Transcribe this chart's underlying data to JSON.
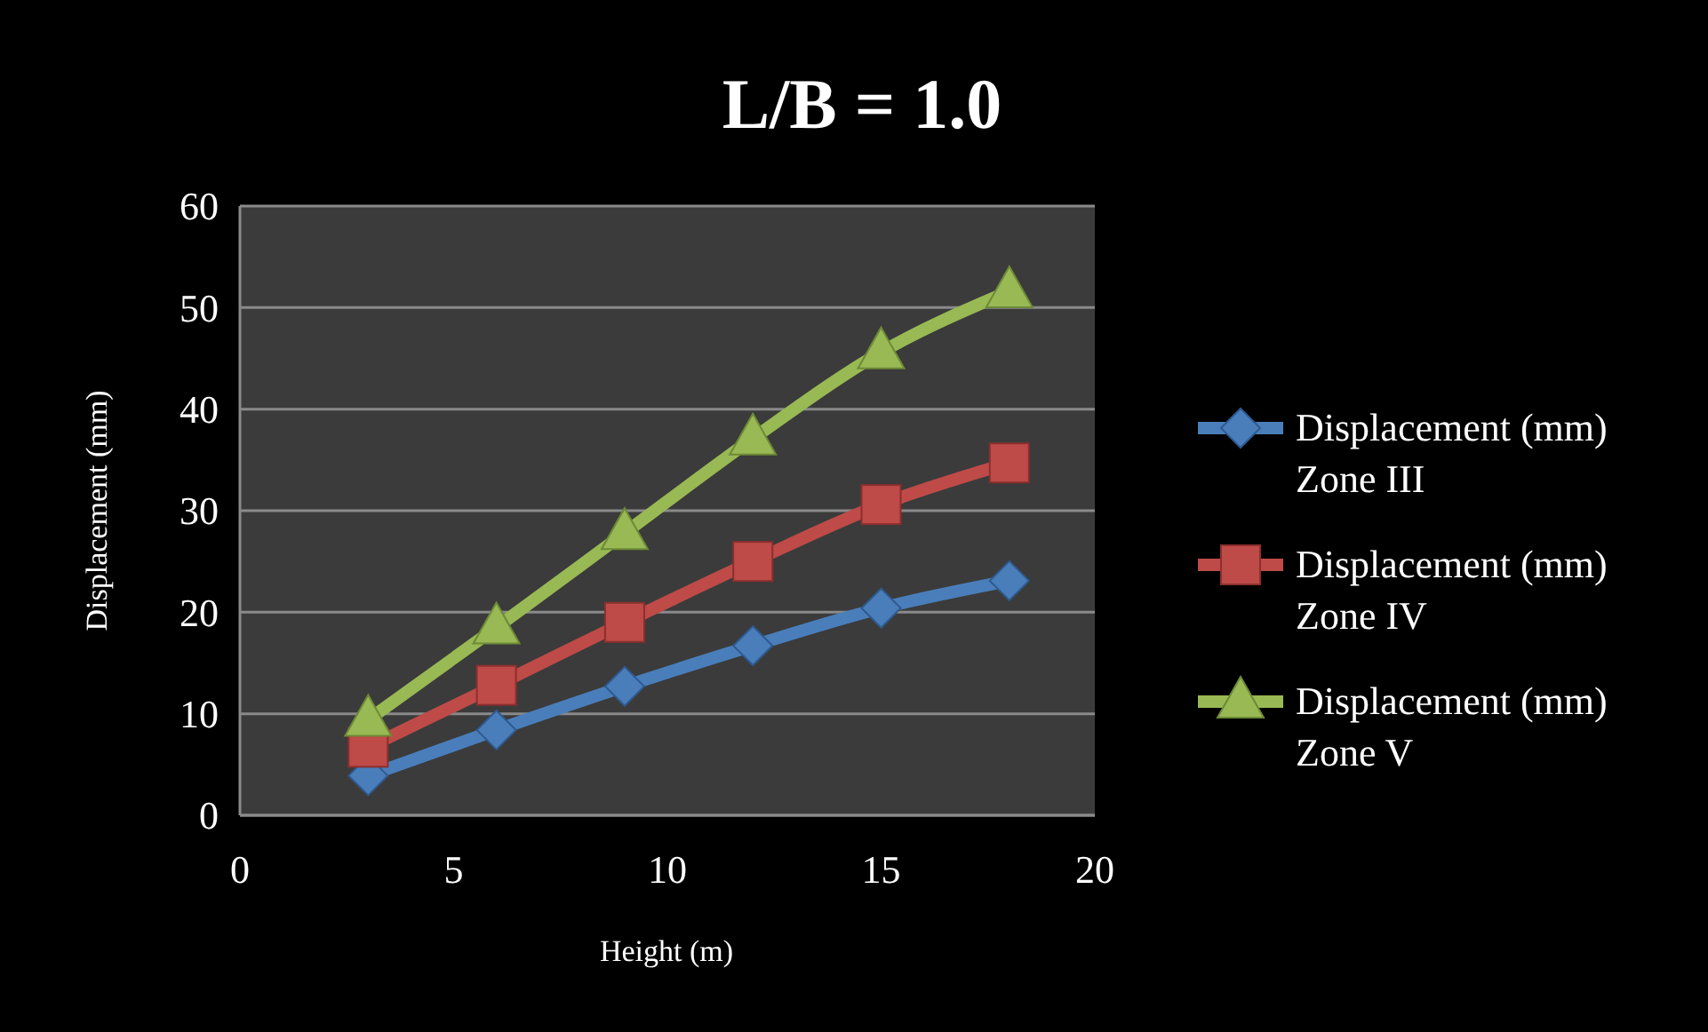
{
  "chart_data": {
    "type": "line",
    "title": "L/B = 1.0",
    "xlabel": "Height (m)",
    "ylabel": "Displacement (mm)",
    "x": [
      3,
      6,
      9,
      12,
      15,
      18
    ],
    "xlim": [
      0,
      20
    ],
    "xticks": [
      0,
      5,
      10,
      15,
      20
    ],
    "ylim": [
      0,
      60
    ],
    "yticks": [
      0,
      10,
      20,
      30,
      40,
      50,
      60
    ],
    "grid": "y",
    "legend": "right",
    "series": [
      {
        "name": "Displacement (mm) Zone III",
        "color": "#4a7ebb",
        "marker": "diamond",
        "values": [
          3.9,
          8.4,
          12.7,
          16.7,
          20.4,
          23.1
        ]
      },
      {
        "name": "Displacement (mm) Zone IV",
        "color": "#be4b48",
        "marker": "square",
        "values": [
          6.7,
          12.8,
          19.0,
          25.0,
          30.6,
          34.7
        ]
      },
      {
        "name": "Displacement (mm) Zone V",
        "color": "#98b954",
        "marker": "triangle",
        "values": [
          9.4,
          18.5,
          27.8,
          37.1,
          45.6,
          51.6
        ]
      }
    ]
  }
}
